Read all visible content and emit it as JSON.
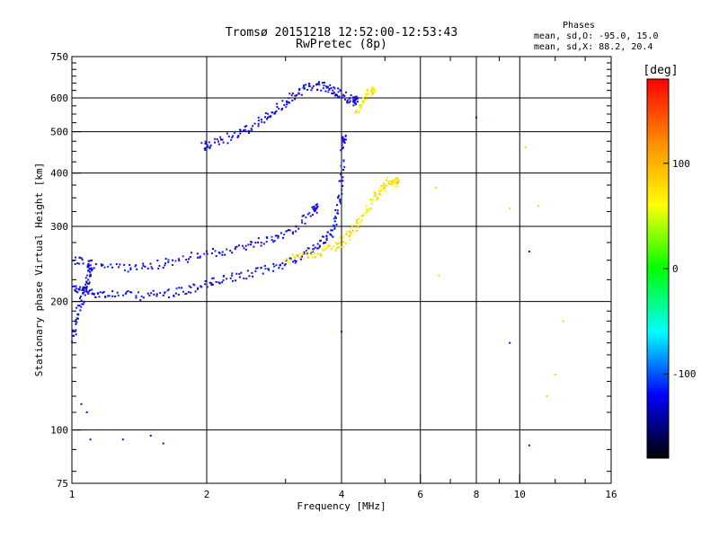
{
  "header": {
    "title_line1": "Tromsø 20151218 12:52:00-12:53:43",
    "title_line2": "RwPretec (8p)"
  },
  "legend_text": {
    "line1": "Phases",
    "line2": "mean, sd,O: -95.0, 15.0",
    "line3": "mean, sd,X: 88.2, 20.4"
  },
  "colorbar": {
    "label": "[deg]",
    "ticks": [
      "100",
      "0",
      "-100"
    ],
    "colors": [
      "#ff0000",
      "#ff8c00",
      "#ffff00",
      "#00ff00",
      "#00ffff",
      "#0000ff",
      "#000000"
    ]
  },
  "chart_data": {
    "type": "scatter",
    "title": "Tromsø 20151218 12:52:00-12:53:43",
    "subtitle": "RwPretec (8p)",
    "xlabel": "Frequency [MHz]",
    "ylabel": "Stationary phase Virtual Height [km]",
    "xscale": "log",
    "yscale": "log",
    "xlim": [
      1,
      16
    ],
    "ylim": [
      75,
      750
    ],
    "x_ticks": [
      "1",
      "2",
      "4",
      "6",
      "8",
      "10",
      "16"
    ],
    "y_ticks": [
      "75",
      "100",
      "200",
      "300",
      "400",
      "500",
      "600",
      "750"
    ],
    "grid": true,
    "color_scale": "phase [deg]",
    "traces": [
      {
        "name_hint": "O-mode lower",
        "phase": -95,
        "x": [
          1.0,
          1.05,
          1.1,
          1.2,
          1.4,
          1.6,
          1.8,
          2.0,
          2.2,
          2.5,
          2.8,
          3.1,
          3.4,
          3.6,
          3.8,
          3.9,
          4.0,
          4.05
        ],
        "y": [
          215,
          212,
          210,
          208,
          206,
          208,
          212,
          220,
          225,
          232,
          240,
          250,
          262,
          275,
          290,
          320,
          380,
          480
        ]
      },
      {
        "name_hint": "O-mode lower spread",
        "phase": -95,
        "x": [
          1.0,
          1.1,
          1.3,
          1.5,
          1.7,
          2.0,
          2.3,
          2.6,
          2.9,
          3.2,
          3.5
        ],
        "y": [
          250,
          245,
          240,
          242,
          250,
          258,
          265,
          275,
          285,
          300,
          330
        ]
      },
      {
        "name_hint": "O-mode upper",
        "phase": -95,
        "x": [
          1.95,
          2.1,
          2.3,
          2.5,
          2.7,
          2.9,
          3.1,
          3.3,
          3.5,
          3.7,
          3.9,
          4.1,
          4.3
        ],
        "y": [
          460,
          470,
          490,
          510,
          540,
          570,
          600,
          630,
          640,
          635,
          620,
          600,
          590
        ]
      },
      {
        "name_hint": "O-mode near 1 MHz",
        "phase": -95,
        "x": [
          1.0,
          1.02,
          1.05,
          1.08,
          1.1
        ],
        "y": [
          160,
          180,
          200,
          220,
          240
        ]
      },
      {
        "name_hint": "X-mode",
        "phase": 88,
        "x": [
          3.0,
          3.3,
          3.6,
          3.9,
          4.1,
          4.3,
          4.5,
          4.7,
          4.9,
          5.1,
          5.3
        ],
        "y": [
          250,
          255,
          262,
          270,
          280,
          300,
          320,
          345,
          365,
          385,
          380
        ]
      },
      {
        "name_hint": "X-mode upper",
        "phase": 88,
        "x": [
          4.3,
          4.5,
          4.7
        ],
        "y": [
          560,
          600,
          630
        ]
      },
      {
        "name_hint": "isolated points",
        "phase": 100,
        "x": [
          6.5,
          6.6,
          9.5,
          10.3,
          11.0,
          12.5,
          12.0,
          11.5
        ],
        "y": [
          370,
          230,
          330,
          460,
          335,
          180,
          135,
          120
        ]
      },
      {
        "name_hint": "isolated low",
        "phase": -110,
        "x": [
          1.05,
          1.08,
          1.1,
          1.3,
          1.5,
          1.6,
          8.0,
          9.5,
          10.5,
          4.0,
          10.5
        ],
        "y": [
          115,
          110,
          95,
          95,
          97,
          93,
          540,
          160,
          92,
          170,
          262
        ]
      }
    ]
  }
}
